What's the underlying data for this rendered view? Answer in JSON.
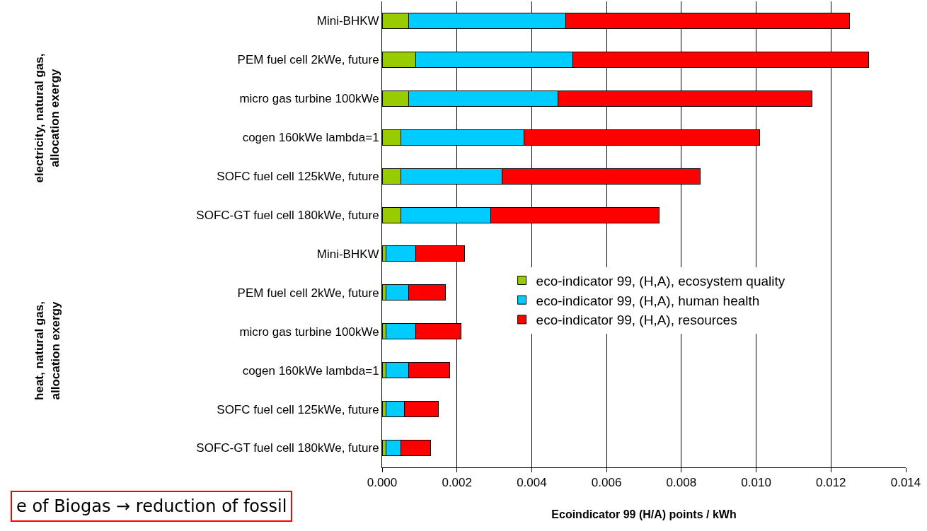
{
  "chart_data": {
    "type": "bar",
    "orientation": "horizontal",
    "stacked": true,
    "categories": [
      "Mini-BHKW",
      "PEM fuel cell 2kWe, future",
      "micro gas turbine 100kWe",
      "cogen 160kWe lambda=1",
      "SOFC fuel cell 125kWe, future",
      "SOFC-GT fuel cell 180kWe, future",
      "Mini-BHKW",
      "PEM fuel cell 2kWe, future",
      "micro gas turbine 100kWe",
      "cogen 160kWe lambda=1",
      "SOFC fuel cell 125kWe, future",
      "SOFC-GT fuel cell 180kWe, future"
    ],
    "series": [
      {
        "name": "eco-indicator 99, (H,A), ecosystem quality",
        "color": "#99cc00",
        "values": [
          0.0007,
          0.0009,
          0.0007,
          0.0005,
          0.0005,
          0.0005,
          0.0001,
          0.0001,
          0.0001,
          0.0001,
          0.0001,
          0.0001
        ]
      },
      {
        "name": "eco-indicator 99, (H,A), human health",
        "color": "#00ccff",
        "values": [
          0.0042,
          0.0042,
          0.004,
          0.0033,
          0.0027,
          0.0024,
          0.0008,
          0.0006,
          0.0008,
          0.0006,
          0.0005,
          0.0004
        ]
      },
      {
        "name": "eco-indicator 99, (H,A), resources",
        "color": "#ff0000",
        "values": [
          0.0076,
          0.0079,
          0.0068,
          0.0063,
          0.0053,
          0.0045,
          0.0013,
          0.001,
          0.0012,
          0.0011,
          0.0009,
          0.0008
        ]
      }
    ],
    "xlim": [
      0,
      0.014
    ],
    "xticks": [
      {
        "value": 0,
        "label": "0.000"
      },
      {
        "value": 0.002,
        "label": "0.002"
      },
      {
        "value": 0.004,
        "label": "0.004"
      },
      {
        "value": 0.006,
        "label": "0.006"
      },
      {
        "value": 0.008,
        "label": "0.008"
      },
      {
        "value": 0.01,
        "label": "0.010"
      },
      {
        "value": 0.012,
        "label": "0.012"
      },
      {
        "value": 0.014,
        "label": "0.014"
      }
    ],
    "xlabel": "Ecoindicator 99 (H/A) points / kWh",
    "grid": "x",
    "legend": "right",
    "annotations": [
      "electricity, natural gas, allocation exergy",
      "heat, natural gas, allocation exergy",
      "e of Biogas → reduction of fossil"
    ]
  }
}
